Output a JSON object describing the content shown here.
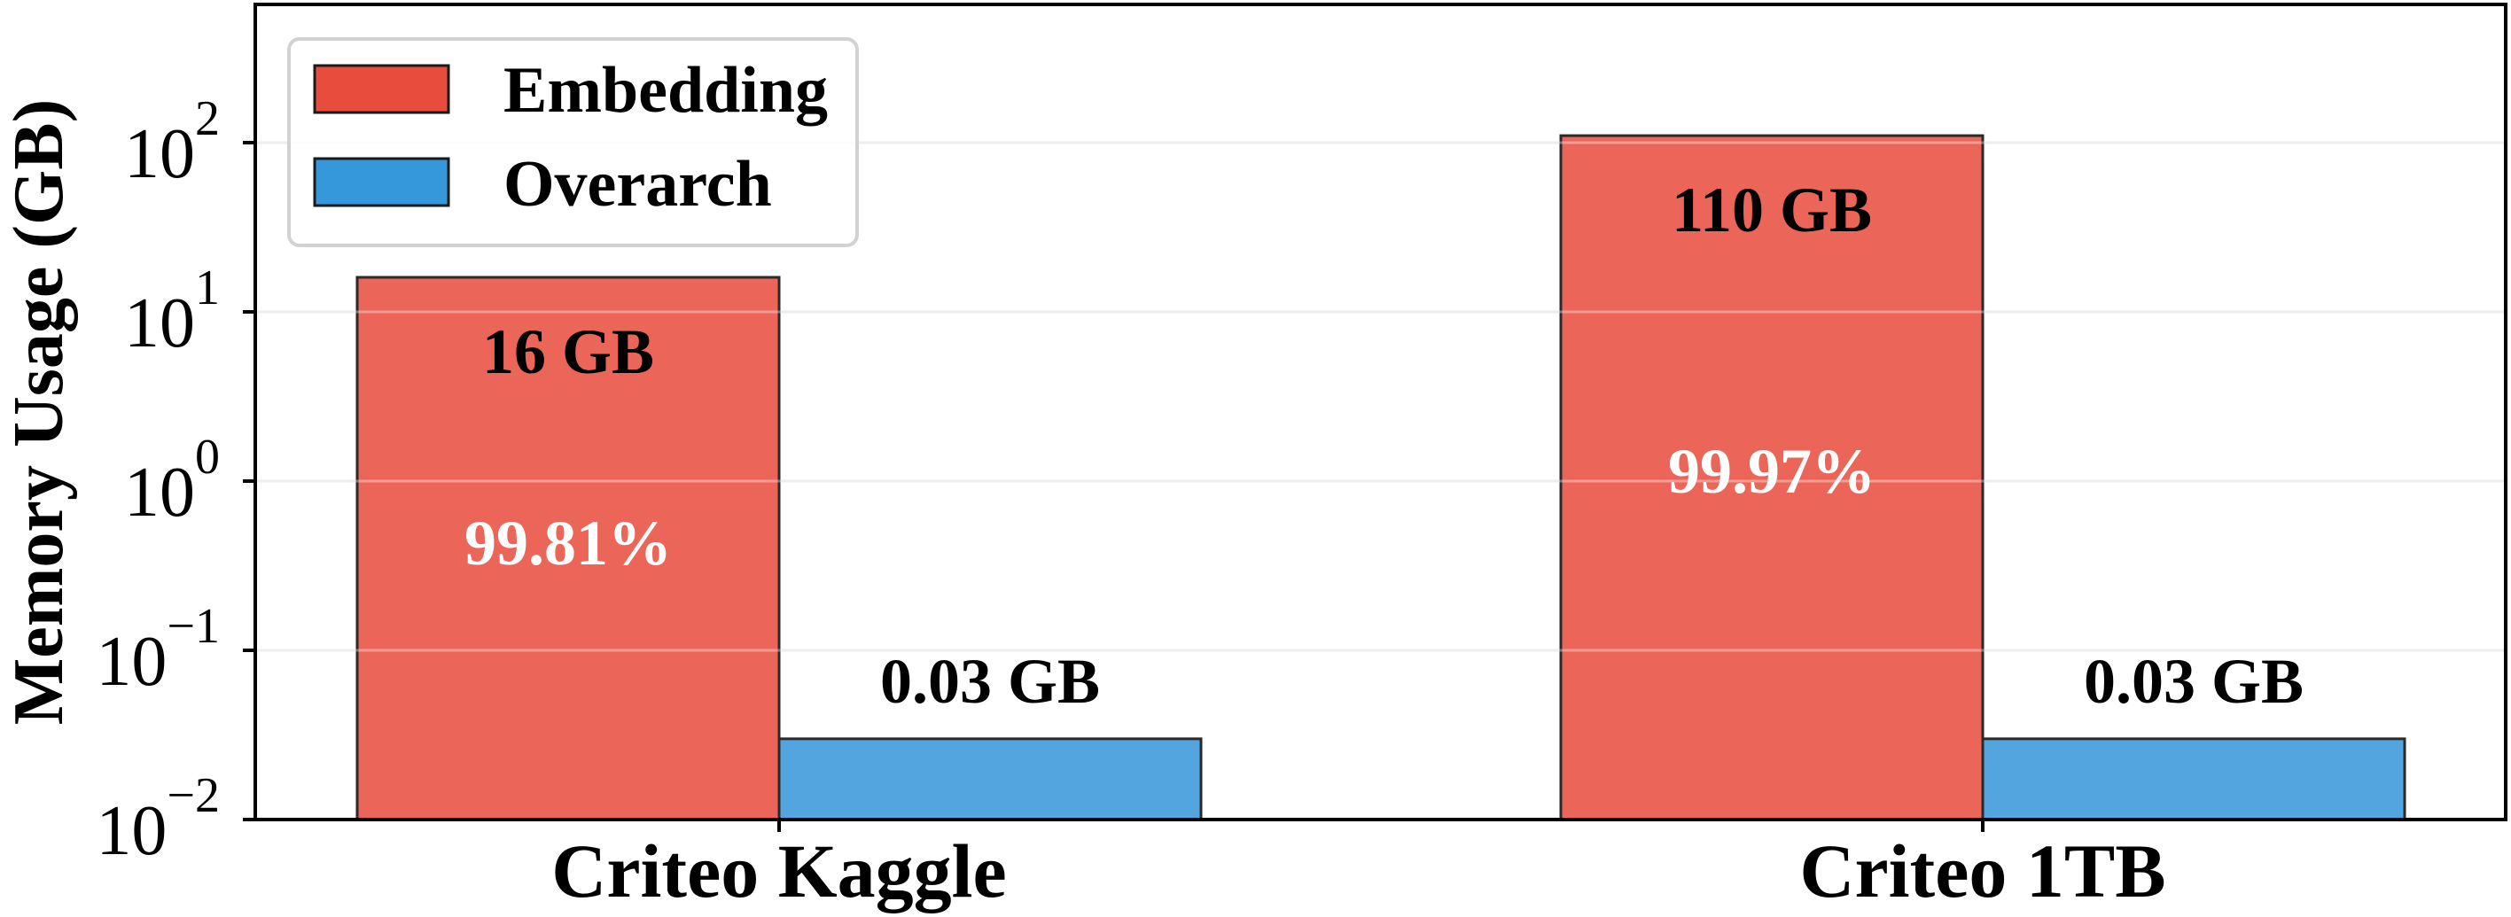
{
  "chart_data": {
    "type": "bar",
    "title": "",
    "xlabel": "",
    "ylabel": "Memory Usage (GB)",
    "yscale": "log",
    "ylim": [
      0.01,
      660
    ],
    "yticks": [
      {
        "base": "10",
        "exp": "2",
        "value": 100
      },
      {
        "base": "10",
        "exp": "1",
        "value": 10
      },
      {
        "base": "10",
        "exp": "0",
        "value": 1
      },
      {
        "base": "10",
        "exp": "−1",
        "value": 0.1
      },
      {
        "base": "10",
        "exp": "−2",
        "value": 0.01
      }
    ],
    "grid": {
      "axis": "y",
      "on": true
    },
    "legend_position": "upper left",
    "categories": [
      "Criteo Kaggle",
      "Criteo 1TB"
    ],
    "series": [
      {
        "name": "Embedding",
        "color": "#E74C3C",
        "bar_color": "#EB6659",
        "values": [
          16,
          110
        ],
        "value_labels": [
          "16 GB",
          "110 GB"
        ],
        "share_labels": [
          "99.81%",
          "99.97%"
        ]
      },
      {
        "name": "Overarch",
        "color": "#3498DB",
        "bar_color": "#52A5DF",
        "values": [
          0.03,
          0.03
        ],
        "value_labels": [
          "0.03 GB",
          "0.03 GB"
        ]
      }
    ]
  }
}
